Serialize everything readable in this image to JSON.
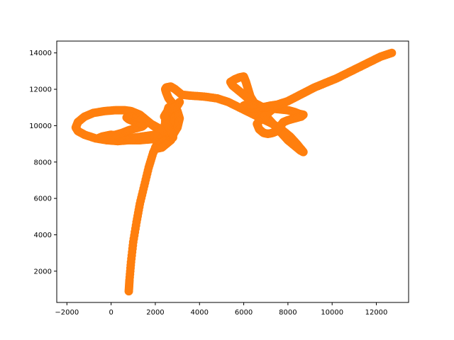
{
  "chart_data": {
    "type": "scatter",
    "title": "",
    "xlabel": "",
    "ylabel": "",
    "xlim": [
      -2460,
      13460
    ],
    "ylim": [
      280,
      14650
    ],
    "xticks": [
      -2000,
      0,
      2000,
      4000,
      6000,
      8000,
      10000,
      12000
    ],
    "yticks": [
      2000,
      4000,
      6000,
      8000,
      10000,
      12000,
      14000
    ],
    "grid": false,
    "legend": "none",
    "colors": {
      "series": "#ff7f0e",
      "axes": "#000000",
      "background": "#ffffff"
    },
    "series": [
      {
        "x": [
          800,
          830,
          900,
          1000,
          1150,
          1300,
          1500,
          1700,
          1900,
          2050,
          2150,
          2300,
          2400,
          2500,
          2550,
          2600,
          2700,
          2750,
          2700,
          2600,
          2500,
          2450,
          2500,
          2600,
          2800,
          3000,
          3100,
          3000,
          2800,
          2600,
          2500,
          2450,
          2500,
          2700,
          2900,
          3200,
          3600,
          4200,
          4800,
          5300,
          5800,
          6300,
          6800,
          7300,
          7700,
          8100,
          8400,
          8600,
          8700,
          8550,
          8300,
          8000,
          7700,
          7400,
          7100,
          6800,
          6500,
          6300,
          6200,
          6100,
          6000,
          5800,
          5600,
          5400,
          5500,
          5800,
          6100,
          6400,
          6800,
          7200,
          7600,
          8000,
          8300,
          8500,
          8700,
          8600,
          8300,
          8000,
          7800,
          7700,
          7600,
          7500,
          7300,
          7100,
          6900,
          6700,
          6600,
          6800,
          7100,
          7300,
          7500,
          7600,
          7500,
          7200,
          6800,
          6400,
          6100,
          6000,
          6200,
          6500,
          6800,
          7000,
          7200,
          7500,
          8000,
          8400,
          8800,
          9200,
          9700,
          10200,
          10700,
          11200,
          11700,
          12200,
          12700
        ],
        "y": [
          900,
          1500,
          2500,
          3600,
          4700,
          5700,
          6700,
          7700,
          8500,
          8900,
          9100,
          9400,
          9900,
          10400,
          10800,
          11000,
          10700,
          10300,
          9900,
          9600,
          9300,
          9150,
          9100,
          9200,
          9500,
          9900,
          10400,
          10800,
          11200,
          11500,
          11800,
          12000,
          12100,
          12150,
          12000,
          11700,
          11650,
          11600,
          11500,
          11300,
          11000,
          10700,
          10400,
          10100,
          9800,
          9400,
          9000,
          8700,
          8550,
          8650,
          8900,
          9200,
          9600,
          10000,
          10400,
          10800,
          11200,
          11600,
          12000,
          12400,
          12700,
          12650,
          12550,
          12400,
          12200,
          11900,
          11600,
          11300,
          11050,
          10950,
          10900,
          10850,
          10750,
          10650,
          10600,
          10500,
          10400,
          10300,
          10200,
          10050,
          9850,
          9700,
          9600,
          9550,
          9600,
          9800,
          10100,
          10400,
          10700,
          10900,
          11000,
          11100,
          11150,
          11100,
          11000,
          10950,
          11000,
          11100,
          11200,
          11100,
          11000,
          11000,
          11050,
          11150,
          11350,
          11600,
          11850,
          12100,
          12350,
          12600,
          12900,
          13200,
          13500,
          13800,
          14000
        ]
      },
      {
        "x": [
          2300,
          1800,
          1300,
          800,
          300,
          -200,
          -700,
          -1200,
          -1500,
          -1600,
          -1500,
          -1200,
          -800,
          -300,
          200,
          600,
          900,
          1100,
          1300,
          1500,
          1700,
          1900,
          2100,
          2300,
          2400,
          2300,
          2000,
          1700,
          1400,
          1100,
          800,
          600,
          400,
          200,
          0,
          -200,
          -400,
          -600,
          -400,
          -100,
          200,
          500,
          800,
          1100,
          1400,
          1500,
          1300,
          1000,
          800,
          700,
          900,
          1200,
          1500,
          1800,
          2100,
          2400,
          2700,
          2800,
          2600,
          2400,
          2200,
          2000,
          2100,
          2300,
          2500,
          2700,
          2800,
          2750,
          2600,
          2450,
          2500,
          2700,
          2950,
          3100,
          3000,
          2700,
          2500,
          2400
        ],
        "y": [
          9300,
          9250,
          9200,
          9200,
          9150,
          9200,
          9300,
          9500,
          9700,
          9900,
          10200,
          10500,
          10700,
          10800,
          10850,
          10850,
          10800,
          10700,
          10600,
          10400,
          10200,
          10000,
          9850,
          9700,
          9600,
          9550,
          9500,
          9450,
          9400,
          9350,
          9300,
          9300,
          9350,
          9450,
          9500,
          9450,
          9400,
          9300,
          9350,
          9400,
          9500,
          9600,
          9750,
          9850,
          9950,
          10050,
          10150,
          10250,
          10350,
          10450,
          10500,
          10450,
          10300,
          10100,
          9900,
          9700,
          9500,
          9350,
          9250,
          9150,
          9000,
          8800,
          8750,
          8800,
          9000,
          9200,
          9400,
          9600,
          9900,
          10250,
          10600,
          10900,
          11100,
          11300,
          11100,
          10900,
          10700,
          10500
        ]
      }
    ]
  }
}
